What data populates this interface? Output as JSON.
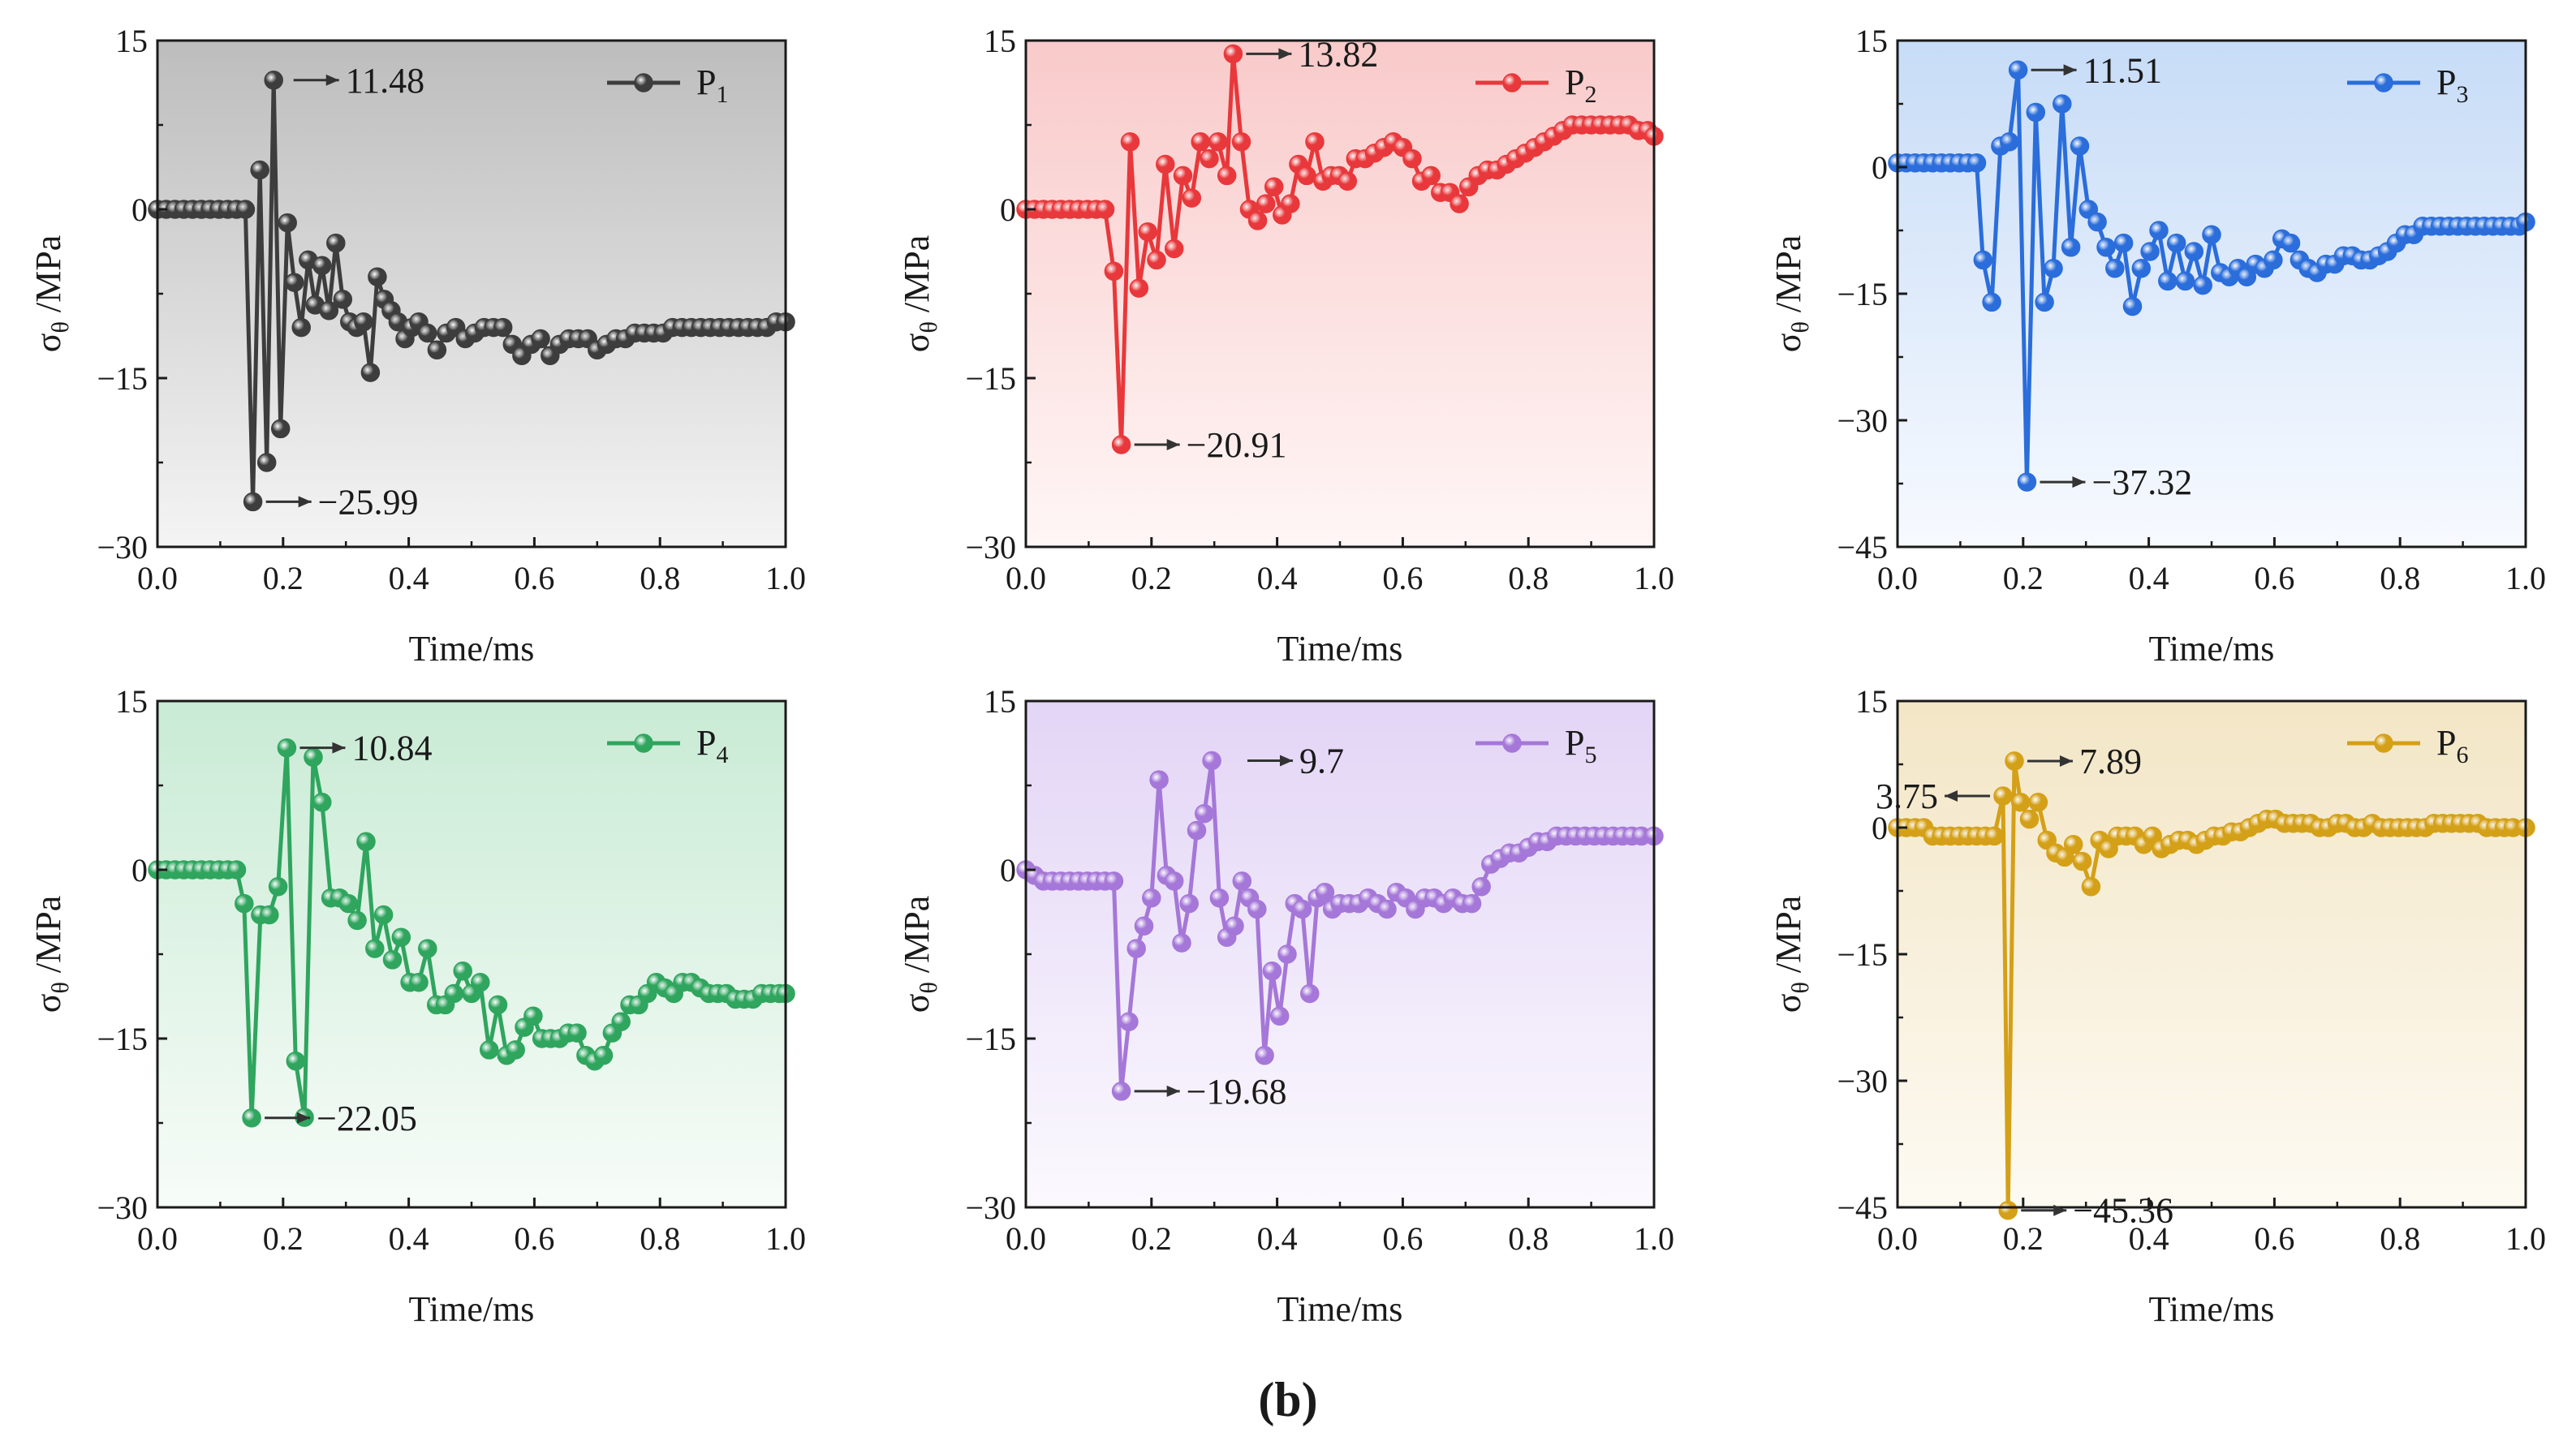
{
  "figure": {
    "caption": "(b)",
    "caption_bold_part": "b"
  },
  "chart_data": [
    {
      "type": "line",
      "panel": "P1",
      "legend": {
        "label": "P",
        "subscript": "1",
        "placement": "top-right"
      },
      "color": "#3d3d3d",
      "bg_top": "#bdbdbd",
      "bg_bottom": "#f4f4f4",
      "xlabel": "Time/ms",
      "ylabel": {
        "sigma": "σ",
        "sub": "θ",
        "unit": " /MPa"
      },
      "xlim": [
        0,
        1.0
      ],
      "ylim": [
        -30,
        15
      ],
      "xticks": [
        "0.0",
        "0.2",
        "0.4",
        "0.6",
        "0.8",
        "1.0"
      ],
      "yticks": [
        "15",
        "0",
        "−15",
        "−30"
      ],
      "ytick_values": [
        15,
        0,
        -15,
        -30
      ],
      "x": [
        0,
        0.014,
        0.028,
        0.042,
        0.056,
        0.07,
        0.084,
        0.098,
        0.112,
        0.126,
        0.14,
        0.152,
        0.163,
        0.174,
        0.185,
        0.196,
        0.207,
        0.218,
        0.229,
        0.24,
        0.251,
        0.262,
        0.273,
        0.284,
        0.295,
        0.306,
        0.317,
        0.328,
        0.339,
        0.35,
        0.361,
        0.372,
        0.383,
        0.394,
        0.405,
        0.416,
        0.43,
        0.445,
        0.46,
        0.475,
        0.49,
        0.505,
        0.52,
        0.535,
        0.55,
        0.565,
        0.58,
        0.595,
        0.61,
        0.625,
        0.64,
        0.655,
        0.67,
        0.685,
        0.7,
        0.715,
        0.73,
        0.745,
        0.76,
        0.775,
        0.79,
        0.805,
        0.82,
        0.835,
        0.85,
        0.865,
        0.88,
        0.895,
        0.91,
        0.925,
        0.94,
        0.955,
        0.97,
        0.985,
        1.0
      ],
      "y": [
        0,
        0,
        0,
        0,
        0,
        0,
        0,
        0,
        0,
        0,
        0,
        -25.99,
        3.5,
        -22.5,
        11.48,
        -19.5,
        -1.2,
        -6.5,
        -10.5,
        -4.5,
        -8.5,
        -5.0,
        -9.0,
        -3.0,
        -8.0,
        -10.0,
        -10.5,
        -10.0,
        -14.5,
        -6.0,
        -8.0,
        -9.0,
        -10.0,
        -11.5,
        -10.5,
        -10.0,
        -11.0,
        -12.5,
        -11.0,
        -10.5,
        -11.5,
        -11.0,
        -10.5,
        -10.5,
        -10.5,
        -12.0,
        -13.0,
        -12.0,
        -11.5,
        -13.0,
        -12.0,
        -11.5,
        -11.5,
        -11.5,
        -12.5,
        -12.0,
        -11.5,
        -11.5,
        -11.0,
        -11.0,
        -11.0,
        -11.0,
        -10.5,
        -10.5,
        -10.5,
        -10.5,
        -10.5,
        -10.5,
        -10.5,
        -10.5,
        -10.5,
        -10.5,
        -10.5,
        -10.0,
        -10.0
      ],
      "annotations": [
        {
          "label": "11.48",
          "x": 0.196,
          "y": 11.48,
          "side": "right"
        },
        {
          "label": "−25.99",
          "x": 0.152,
          "y": -25.99,
          "side": "right"
        }
      ]
    },
    {
      "type": "line",
      "panel": "P2",
      "legend": {
        "label": "P",
        "subscript": "2",
        "placement": "top-right"
      },
      "color": "#e8383b",
      "bg_top": "#f9caca",
      "bg_bottom": "#fff6f6",
      "xlabel": "Time/ms",
      "ylabel": {
        "sigma": "σ",
        "sub": "θ",
        "unit": " /MPa"
      },
      "xlim": [
        0,
        1.0
      ],
      "ylim": [
        -30,
        15
      ],
      "xticks": [
        "0.0",
        "0.2",
        "0.4",
        "0.6",
        "0.8",
        "1.0"
      ],
      "yticks": [
        "15",
        "0",
        "−15",
        "−30"
      ],
      "ytick_values": [
        15,
        0,
        -15,
        -30
      ],
      "x": [
        0,
        0.014,
        0.028,
        0.042,
        0.056,
        0.07,
        0.084,
        0.098,
        0.112,
        0.126,
        0.14,
        0.152,
        0.166,
        0.18,
        0.194,
        0.208,
        0.222,
        0.236,
        0.25,
        0.264,
        0.278,
        0.292,
        0.306,
        0.32,
        0.33,
        0.343,
        0.356,
        0.369,
        0.382,
        0.395,
        0.408,
        0.421,
        0.434,
        0.447,
        0.46,
        0.473,
        0.486,
        0.499,
        0.512,
        0.525,
        0.54,
        0.555,
        0.57,
        0.585,
        0.6,
        0.615,
        0.63,
        0.645,
        0.66,
        0.675,
        0.69,
        0.705,
        0.72,
        0.735,
        0.75,
        0.765,
        0.78,
        0.795,
        0.81,
        0.825,
        0.84,
        0.855,
        0.87,
        0.885,
        0.9,
        0.915,
        0.93,
        0.945,
        0.96,
        0.975,
        0.99,
        1.0
      ],
      "y": [
        0,
        0,
        0,
        0,
        0,
        0,
        0,
        0,
        0,
        0,
        -5.5,
        -20.91,
        6.0,
        -7.0,
        -2.0,
        -4.5,
        4.0,
        -3.5,
        3.0,
        1.0,
        6.0,
        4.5,
        6.0,
        3.0,
        13.82,
        6.0,
        0.0,
        -1.0,
        0.5,
        2.0,
        -0.5,
        0.5,
        4.0,
        3.0,
        6.0,
        2.5,
        3.0,
        3.0,
        2.5,
        4.5,
        4.5,
        5.0,
        5.5,
        6.0,
        5.5,
        4.5,
        2.5,
        3.0,
        1.5,
        1.5,
        0.5,
        2.0,
        3.0,
        3.5,
        3.5,
        4.0,
        4.5,
        5.0,
        5.5,
        6.0,
        6.5,
        7.0,
        7.5,
        7.5,
        7.5,
        7.5,
        7.5,
        7.5,
        7.5,
        7.0,
        7.0,
        6.5
      ],
      "annotations": [
        {
          "label": "13.82",
          "x": 0.33,
          "y": 13.82,
          "side": "right"
        },
        {
          "label": "−20.91",
          "x": 0.152,
          "y": -20.91,
          "side": "right"
        }
      ]
    },
    {
      "type": "line",
      "panel": "P3",
      "legend": {
        "label": "P",
        "subscript": "3",
        "placement": "top-right"
      },
      "color": "#2a6ddb",
      "bg_top": "#c7dcf7",
      "bg_bottom": "#f7faff",
      "xlabel": "Time/ms",
      "ylabel": {
        "sigma": "σ",
        "sub": "θ",
        "unit": " /MPa"
      },
      "xlim": [
        0,
        1.0
      ],
      "ylim": [
        -45,
        15
      ],
      "xticks": [
        "0.0",
        "0.2",
        "0.4",
        "0.6",
        "0.8",
        "1.0"
      ],
      "yticks": [
        "15",
        "0",
        "−15",
        "−30",
        "−45"
      ],
      "ytick_values": [
        15,
        0,
        -15,
        -30,
        -45
      ],
      "x": [
        0,
        0.014,
        0.028,
        0.042,
        0.056,
        0.07,
        0.084,
        0.098,
        0.112,
        0.126,
        0.136,
        0.15,
        0.164,
        0.178,
        0.192,
        0.206,
        0.22,
        0.234,
        0.248,
        0.262,
        0.276,
        0.29,
        0.304,
        0.318,
        0.332,
        0.346,
        0.36,
        0.374,
        0.388,
        0.402,
        0.416,
        0.43,
        0.444,
        0.458,
        0.472,
        0.486,
        0.5,
        0.514,
        0.528,
        0.542,
        0.556,
        0.57,
        0.584,
        0.598,
        0.612,
        0.626,
        0.64,
        0.654,
        0.668,
        0.682,
        0.696,
        0.71,
        0.724,
        0.738,
        0.752,
        0.766,
        0.78,
        0.794,
        0.808,
        0.822,
        0.836,
        0.85,
        0.864,
        0.878,
        0.892,
        0.906,
        0.92,
        0.934,
        0.948,
        0.962,
        0.976,
        0.99,
        1.0
      ],
      "y": [
        0.5,
        0.5,
        0.5,
        0.5,
        0.5,
        0.5,
        0.5,
        0.5,
        0.5,
        0.5,
        -11,
        -16,
        2.5,
        3.0,
        11.51,
        -37.32,
        6.5,
        -16,
        -12,
        7.5,
        -9.5,
        2.5,
        -5,
        -6.5,
        -9.5,
        -12,
        -9,
        -16.5,
        -12,
        -10,
        -7.5,
        -13.5,
        -9,
        -13.5,
        -10,
        -14,
        -8,
        -12.5,
        -13,
        -12,
        -13,
        -11.5,
        -12,
        -11,
        -8.5,
        -9,
        -11,
        -12,
        -12.5,
        -11.5,
        -11.5,
        -10.5,
        -10.5,
        -11,
        -11,
        -10.5,
        -10,
        -9,
        -8,
        -8,
        -7,
        -7,
        -7,
        -7,
        -7,
        -7,
        -7,
        -7,
        -7,
        -7,
        -7,
        -7,
        -6.5
      ],
      "annotations": [
        {
          "label": "11.51",
          "x": 0.192,
          "y": 11.51,
          "side": "right"
        },
        {
          "label": "−37.32",
          "x": 0.206,
          "y": -37.32,
          "side": "right"
        }
      ]
    },
    {
      "type": "line",
      "panel": "P4",
      "legend": {
        "label": "P",
        "subscript": "4",
        "placement": "top-right"
      },
      "color": "#2fa55e",
      "bg_top": "#c9ebd5",
      "bg_bottom": "#f7fcf8",
      "xlabel": "Time/ms",
      "ylabel": {
        "sigma": "σ",
        "sub": "θ",
        "unit": " /MPa"
      },
      "xlim": [
        0,
        1.0
      ],
      "ylim": [
        -30,
        15
      ],
      "xticks": [
        "0.0",
        "0.2",
        "0.4",
        "0.6",
        "0.8",
        "1.0"
      ],
      "yticks": [
        "15",
        "0",
        "−15",
        "−30"
      ],
      "ytick_values": [
        15,
        0,
        -15,
        -30
      ],
      "x": [
        0,
        0.014,
        0.028,
        0.042,
        0.056,
        0.07,
        0.084,
        0.098,
        0.112,
        0.126,
        0.138,
        0.15,
        0.164,
        0.178,
        0.192,
        0.206,
        0.22,
        0.234,
        0.248,
        0.262,
        0.276,
        0.29,
        0.304,
        0.318,
        0.332,
        0.346,
        0.36,
        0.374,
        0.388,
        0.402,
        0.416,
        0.43,
        0.444,
        0.458,
        0.472,
        0.486,
        0.5,
        0.514,
        0.528,
        0.542,
        0.556,
        0.57,
        0.584,
        0.598,
        0.612,
        0.626,
        0.64,
        0.654,
        0.668,
        0.682,
        0.696,
        0.71,
        0.724,
        0.738,
        0.752,
        0.766,
        0.78,
        0.794,
        0.808,
        0.822,
        0.836,
        0.85,
        0.864,
        0.878,
        0.892,
        0.906,
        0.92,
        0.934,
        0.948,
        0.962,
        0.976,
        0.99,
        1.0
      ],
      "y": [
        0,
        0,
        0,
        0,
        0,
        0,
        0,
        0,
        0,
        0,
        -3,
        -22.05,
        -4,
        -4,
        -1.5,
        10.84,
        -17,
        -22,
        10,
        6,
        -2.5,
        -2.5,
        -3,
        -4.5,
        2.5,
        -7,
        -4,
        -8,
        -6,
        -10,
        -10,
        -7,
        -12,
        -12,
        -11,
        -9,
        -11,
        -10,
        -16,
        -12,
        -16.5,
        -16,
        -14,
        -13,
        -15,
        -15,
        -15,
        -14.5,
        -14.5,
        -16.5,
        -17,
        -16.5,
        -14.5,
        -13.5,
        -12,
        -12,
        -11,
        -10,
        -10.5,
        -11,
        -10,
        -10,
        -10.5,
        -11,
        -11,
        -11,
        -11.5,
        -11.5,
        -11.5,
        -11,
        -11,
        -11,
        -11
      ],
      "annotations": [
        {
          "label": "10.84",
          "x": 0.206,
          "y": 10.84,
          "side": "right"
        },
        {
          "label": "−22.05",
          "x": 0.15,
          "y": -22.05,
          "side": "right"
        }
      ]
    },
    {
      "type": "line",
      "panel": "P5",
      "legend": {
        "label": "P",
        "subscript": "5",
        "placement": "top-right"
      },
      "color": "#a577d8",
      "bg_top": "#e3d5f6",
      "bg_bottom": "#fbf9fe",
      "xlabel": "Time/ms",
      "ylabel": {
        "sigma": "σ",
        "sub": "θ",
        "unit": " /MPa"
      },
      "xlim": [
        0,
        1.0
      ],
      "ylim": [
        -30,
        15
      ],
      "xticks": [
        "0.0",
        "0.2",
        "0.4",
        "0.6",
        "0.8",
        "1.0"
      ],
      "yticks": [
        "15",
        "0",
        "−15",
        "−30"
      ],
      "ytick_values": [
        15,
        0,
        -15,
        -30
      ],
      "x": [
        0,
        0.014,
        0.028,
        0.042,
        0.056,
        0.07,
        0.084,
        0.098,
        0.112,
        0.126,
        0.14,
        0.152,
        0.164,
        0.176,
        0.188,
        0.2,
        0.212,
        0.224,
        0.236,
        0.248,
        0.26,
        0.272,
        0.284,
        0.296,
        0.308,
        0.32,
        0.332,
        0.344,
        0.356,
        0.368,
        0.38,
        0.392,
        0.404,
        0.416,
        0.428,
        0.44,
        0.452,
        0.464,
        0.476,
        0.488,
        0.5,
        0.515,
        0.53,
        0.545,
        0.56,
        0.575,
        0.59,
        0.605,
        0.62,
        0.635,
        0.65,
        0.665,
        0.68,
        0.695,
        0.71,
        0.725,
        0.74,
        0.755,
        0.77,
        0.785,
        0.8,
        0.815,
        0.83,
        0.845,
        0.86,
        0.875,
        0.89,
        0.905,
        0.92,
        0.935,
        0.95,
        0.965,
        0.98,
        1.0
      ],
      "y": [
        0,
        -0.5,
        -1,
        -1,
        -1,
        -1,
        -1,
        -1,
        -1,
        -1,
        -1,
        -19.68,
        -13.5,
        -7,
        -5,
        -2.5,
        8,
        -0.5,
        -1,
        -6.5,
        -3,
        3.5,
        5,
        9.7,
        -2.5,
        -6,
        -5,
        -1,
        -2.5,
        -3.5,
        -16.5,
        -9,
        -13,
        -7.5,
        -3,
        -3.5,
        -11,
        -2.5,
        -2,
        -3.5,
        -3,
        -3,
        -3,
        -2.5,
        -3,
        -3.5,
        -2,
        -2.5,
        -3.5,
        -2.5,
        -2.5,
        -3,
        -2.5,
        -3,
        -3,
        -1.5,
        0.5,
        1,
        1.5,
        1.5,
        2,
        2.5,
        2.5,
        3,
        3,
        3,
        3,
        3,
        3,
        3,
        3,
        3,
        3,
        3
      ],
      "annotations": [
        {
          "label": "9.7",
          "x": 0.332,
          "y": 9.7,
          "side": "right"
        },
        {
          "label": "−19.68",
          "x": 0.152,
          "y": -19.68,
          "side": "right"
        }
      ]
    },
    {
      "type": "line",
      "panel": "P6",
      "legend": {
        "label": "P",
        "subscript": "6",
        "placement": "top-right"
      },
      "color": "#d4a017",
      "bg_top": "#f3e6c6",
      "bg_bottom": "#fdfaf2",
      "xlabel": "Time/ms",
      "ylabel": {
        "sigma": "σ",
        "sub": "θ",
        "unit": " /MPa"
      },
      "xlim": [
        0,
        1.0
      ],
      "ylim": [
        -45,
        15
      ],
      "xticks": [
        "0.0",
        "0.2",
        "0.4",
        "0.6",
        "0.8",
        "1.0"
      ],
      "yticks": [
        "15",
        "0",
        "−15",
        "−30",
        "−45"
      ],
      "ytick_values": [
        15,
        0,
        -15,
        -30,
        -45
      ],
      "x": [
        0,
        0.014,
        0.028,
        0.042,
        0.056,
        0.07,
        0.084,
        0.098,
        0.112,
        0.126,
        0.14,
        0.154,
        0.168,
        0.176,
        0.186,
        0.196,
        0.21,
        0.224,
        0.238,
        0.252,
        0.266,
        0.28,
        0.294,
        0.308,
        0.322,
        0.336,
        0.35,
        0.364,
        0.378,
        0.392,
        0.406,
        0.42,
        0.434,
        0.448,
        0.462,
        0.476,
        0.49,
        0.504,
        0.518,
        0.532,
        0.546,
        0.56,
        0.574,
        0.588,
        0.602,
        0.616,
        0.63,
        0.644,
        0.658,
        0.672,
        0.686,
        0.7,
        0.714,
        0.728,
        0.742,
        0.756,
        0.77,
        0.784,
        0.798,
        0.812,
        0.826,
        0.84,
        0.854,
        0.868,
        0.882,
        0.896,
        0.91,
        0.924,
        0.938,
        0.952,
        0.966,
        0.98,
        1.0
      ],
      "y": [
        0,
        0,
        0,
        0,
        -1,
        -1,
        -1,
        -1,
        -1,
        -1,
        -1,
        -1,
        3.75,
        -45.36,
        7.89,
        3,
        1,
        3,
        -1.5,
        -3,
        -3.5,
        -2,
        -4,
        -7,
        -1.5,
        -2.5,
        -1,
        -1,
        -1,
        -2,
        -1,
        -2.5,
        -2,
        -1.5,
        -1.5,
        -2,
        -1.5,
        -1,
        -1,
        -0.5,
        -0.5,
        0,
        0.5,
        1,
        1,
        0.5,
        0.5,
        0.5,
        0.5,
        0,
        0,
        0.5,
        0.5,
        0,
        0,
        0.5,
        0,
        0,
        0,
        0,
        0,
        0,
        0.5,
        0.5,
        0.5,
        0.5,
        0.5,
        0.5,
        0,
        0,
        0,
        0,
        0
      ],
      "annotations": [
        {
          "label": "3.75",
          "x": 0.168,
          "y": 3.75,
          "side": "left"
        },
        {
          "label": "7.89",
          "x": 0.186,
          "y": 7.89,
          "side": "right"
        },
        {
          "label": "−45.36",
          "x": 0.176,
          "y": -45.36,
          "side": "right"
        }
      ]
    }
  ]
}
